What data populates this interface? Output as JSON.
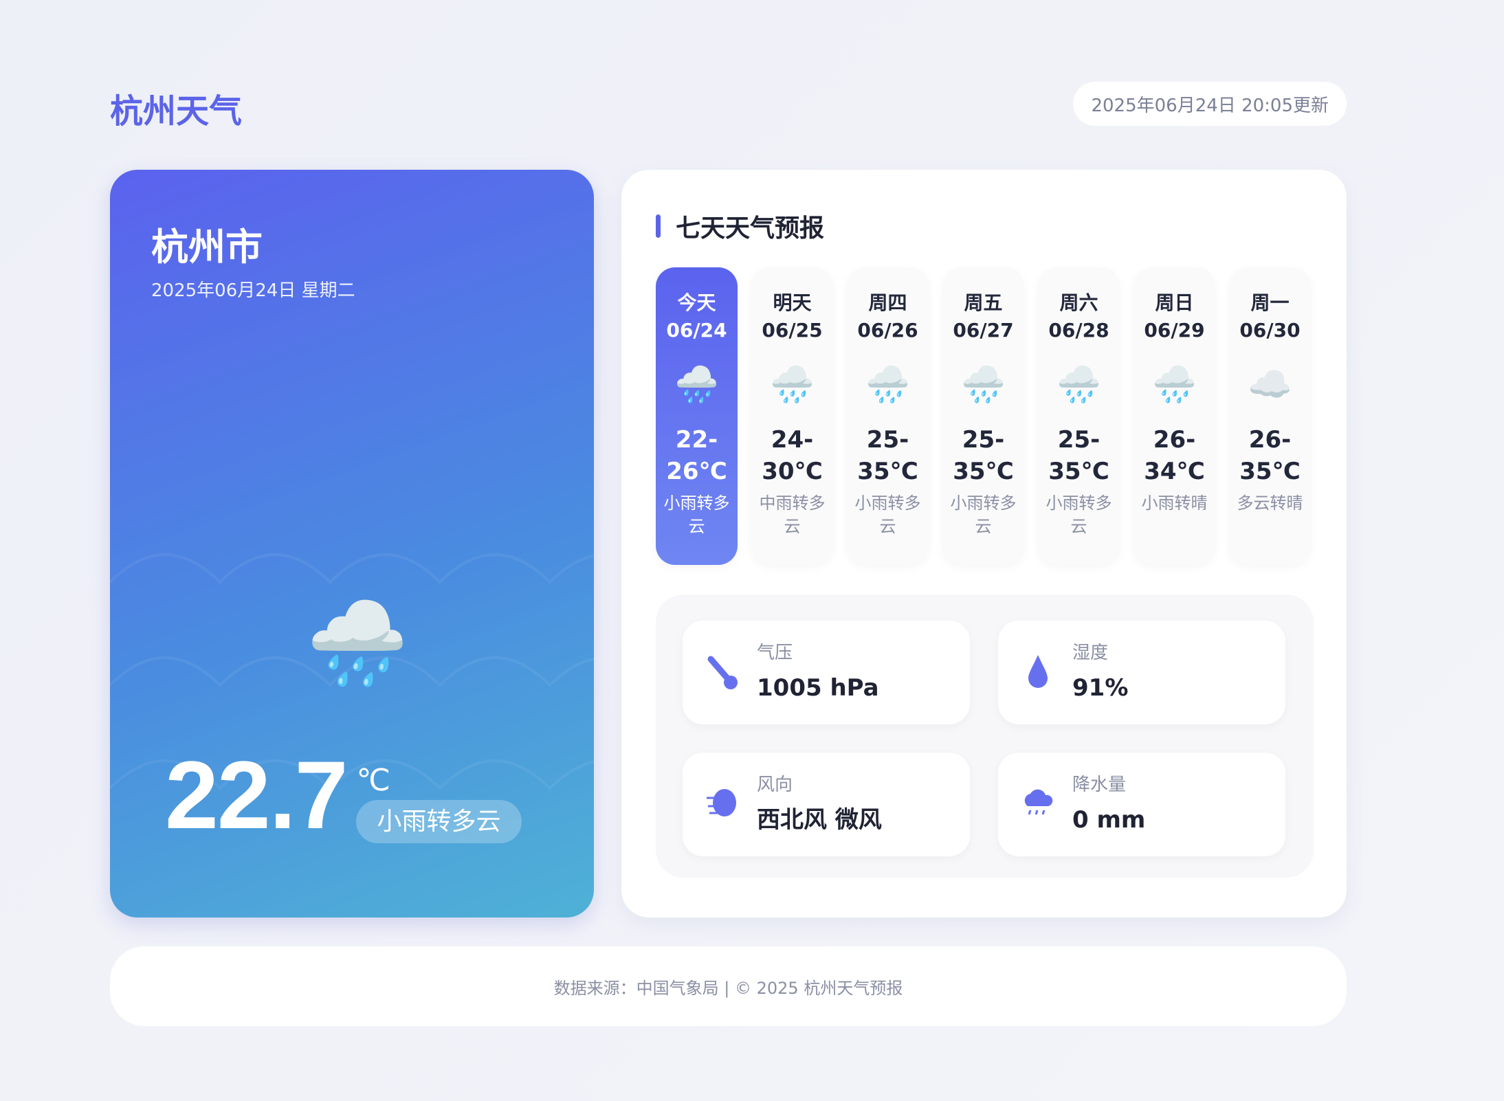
{
  "header": {
    "title": "杭州天气",
    "updated": "2025年06月24日 20:05更新"
  },
  "current": {
    "city": "杭州市",
    "date": "2025年06月24日 星期二",
    "icon": "rain-cloud-icon",
    "temperature": "22.7",
    "unit": "℃",
    "description": "小雨转多云"
  },
  "forecast": {
    "title": "七天天气预报",
    "days": [
      {
        "name": "今天",
        "date": "06/24",
        "icon": "🌧️",
        "temp_low": "22-",
        "temp_high": "26℃",
        "desc": "小雨转多云",
        "active": true
      },
      {
        "name": "明天",
        "date": "06/25",
        "icon": "🌧️",
        "temp_low": "24-",
        "temp_high": "30℃",
        "desc": "中雨转多云"
      },
      {
        "name": "周四",
        "date": "06/26",
        "icon": "🌧️",
        "temp_low": "25-",
        "temp_high": "35℃",
        "desc": "小雨转多云"
      },
      {
        "name": "周五",
        "date": "06/27",
        "icon": "🌧️",
        "temp_low": "25-",
        "temp_high": "35℃",
        "desc": "小雨转多云"
      },
      {
        "name": "周六",
        "date": "06/28",
        "icon": "🌧️",
        "temp_low": "25-",
        "temp_high": "35℃",
        "desc": "小雨转多云"
      },
      {
        "name": "周日",
        "date": "06/29",
        "icon": "🌧️",
        "temp_low": "26-",
        "temp_high": "34℃",
        "desc": "小雨转晴"
      },
      {
        "name": "周一",
        "date": "06/30",
        "icon": "☁️",
        "temp_low": "26-",
        "temp_high": "35℃",
        "desc": "多云转晴"
      }
    ]
  },
  "stats": [
    {
      "label": "气压",
      "value": "1005 hPa",
      "icon": "thermometer-icon"
    },
    {
      "label": "湿度",
      "value": "91%",
      "icon": "droplet-icon"
    },
    {
      "label": "风向",
      "value": "西北风 微风",
      "icon": "wind-icon"
    },
    {
      "label": "降水量",
      "value": "0 mm",
      "icon": "rain-icon"
    }
  ],
  "footer": {
    "text": "数据来源：中国气象局 | © 2025 杭州天气预报"
  },
  "colors": {
    "accent": "#5b63e8",
    "gradient_start": "#5b62ee",
    "gradient_end": "#4fb1d6"
  }
}
